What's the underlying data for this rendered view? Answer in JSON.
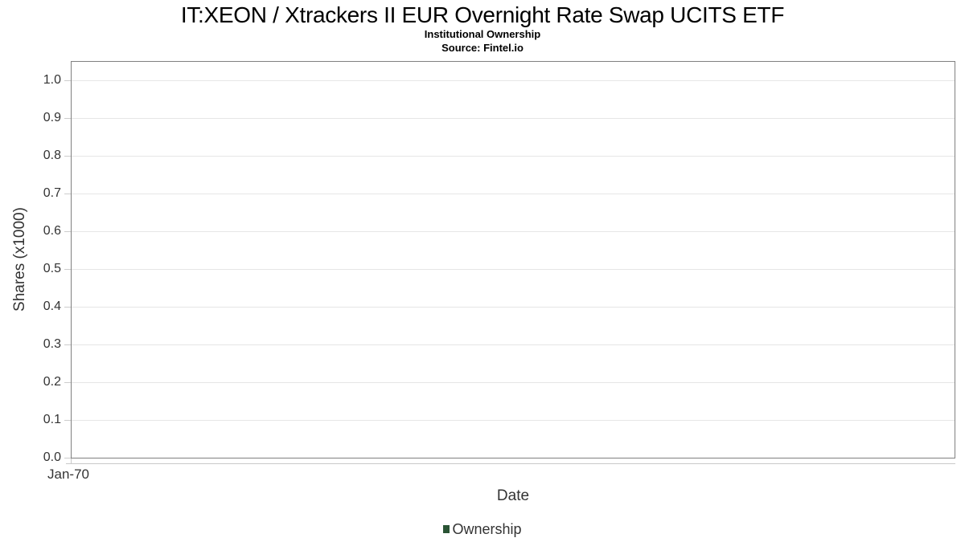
{
  "chart_data": {
    "type": "line",
    "title": "IT:XEON / Xtrackers II EUR Overnight Rate Swap UCITS ETF",
    "subtitle": "Institutional Ownership",
    "source": "Source: Fintel.io",
    "xlabel": "Date",
    "ylabel": "Shares (x1000)",
    "x_ticks": [
      "Jan-70"
    ],
    "y_ticks": [
      "1.0",
      "0.9",
      "0.8",
      "0.7",
      "0.6",
      "0.5",
      "0.4",
      "0.3",
      "0.2",
      "0.1",
      "0.0"
    ],
    "ylim": [
      0.0,
      1.05
    ],
    "grid": true,
    "legend": {
      "position": "bottom",
      "entries": [
        {
          "label": "Ownership",
          "color": "#2a5434"
        }
      ]
    },
    "series": [
      {
        "name": "Ownership",
        "x": [],
        "values": []
      }
    ]
  },
  "colors": {
    "title": "#000000",
    "text": "#333333",
    "plot_border": "#808080",
    "gridline": "#e6e6e6",
    "tick": "#cccccc",
    "axis_line": "#c9c9c9",
    "legend_marker": "#2a5434",
    "background": "#ffffff"
  }
}
